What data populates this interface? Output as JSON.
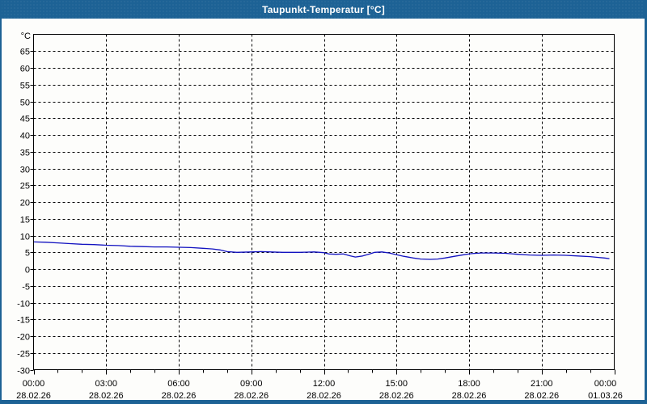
{
  "window": {
    "title": "Taupunkt-Temperatur [°C]",
    "colors": {
      "titlebar": "#1d6295",
      "frame": "#1d6295",
      "background": "#fdfdfb",
      "plot_border": "#000000",
      "grid": "#000000",
      "text": "#000000"
    }
  },
  "chart_data": {
    "type": "line",
    "title": "Taupunkt-Temperatur [°C]",
    "xlabel": "",
    "ylabel": "°C",
    "y_unit_label": "°C",
    "ylim": [
      -30,
      70
    ],
    "ytick_step": 5,
    "ytick_labels": [
      "65",
      "60",
      "55",
      "50",
      "45",
      "40",
      "35",
      "30",
      "25",
      "20",
      "15",
      "10",
      "5",
      "0",
      "-5",
      "-10",
      "-15",
      "-20",
      "-25",
      "-30"
    ],
    "grid": "dashed",
    "legend": "none",
    "x_minor_tick_hours": 1,
    "x_ticks": [
      {
        "hour": 0,
        "time": "00:00",
        "date": "28.02.26"
      },
      {
        "hour": 3,
        "time": "03:00",
        "date": "28.02.26"
      },
      {
        "hour": 6,
        "time": "06:00",
        "date": "28.02.26"
      },
      {
        "hour": 9,
        "time": "09:00",
        "date": "28.02.26"
      },
      {
        "hour": 12,
        "time": "12:00",
        "date": "28.02.26"
      },
      {
        "hour": 15,
        "time": "15:00",
        "date": "28.02.26"
      },
      {
        "hour": 18,
        "time": "18:00",
        "date": "28.02.26"
      },
      {
        "hour": 21,
        "time": "21:00",
        "date": "28.02.26"
      },
      {
        "hour": 24,
        "time": "00:00",
        "date": "01.03.26"
      }
    ],
    "series": [
      {
        "name": "Taupunkt-Temperatur",
        "color": "#1212c0",
        "points": [
          [
            0,
            8.1
          ],
          [
            0.5,
            8.0
          ],
          [
            1,
            7.8
          ],
          [
            1.5,
            7.6
          ],
          [
            2,
            7.4
          ],
          [
            2.5,
            7.3
          ],
          [
            3,
            7.1
          ],
          [
            3.5,
            7.0
          ],
          [
            4,
            6.8
          ],
          [
            4.5,
            6.7
          ],
          [
            5,
            6.6
          ],
          [
            5.5,
            6.6
          ],
          [
            6,
            6.5
          ],
          [
            6.5,
            6.4
          ],
          [
            7,
            6.2
          ],
          [
            7.4,
            6.0
          ],
          [
            7.7,
            5.7
          ],
          [
            8,
            5.2
          ],
          [
            8.4,
            5.0
          ],
          [
            9,
            5.1
          ],
          [
            9.4,
            5.2
          ],
          [
            9.8,
            5.1
          ],
          [
            10.3,
            5.0
          ],
          [
            11,
            5.0
          ],
          [
            11.6,
            5.1
          ],
          [
            12,
            4.9
          ],
          [
            12.2,
            4.5
          ],
          [
            12.5,
            4.4
          ],
          [
            12.8,
            4.5
          ],
          [
            13.1,
            3.9
          ],
          [
            13.3,
            3.6
          ],
          [
            13.6,
            3.9
          ],
          [
            13.9,
            4.5
          ],
          [
            14.1,
            5.0
          ],
          [
            14.4,
            5.1
          ],
          [
            14.7,
            4.8
          ],
          [
            15,
            4.3
          ],
          [
            15.3,
            3.8
          ],
          [
            15.7,
            3.3
          ],
          [
            16,
            3.0
          ],
          [
            16.4,
            2.9
          ],
          [
            16.7,
            3.0
          ],
          [
            17,
            3.3
          ],
          [
            17.4,
            3.8
          ],
          [
            17.8,
            4.3
          ],
          [
            18.1,
            4.6
          ],
          [
            18.5,
            4.8
          ],
          [
            19,
            4.8
          ],
          [
            19.5,
            4.7
          ],
          [
            20,
            4.4
          ],
          [
            20.5,
            4.2
          ],
          [
            21,
            4.1
          ],
          [
            21.5,
            4.2
          ],
          [
            22,
            4.1
          ],
          [
            22.5,
            3.9
          ],
          [
            23,
            3.7
          ],
          [
            23.3,
            3.5
          ],
          [
            23.6,
            3.3
          ],
          [
            23.8,
            3.1
          ]
        ]
      }
    ]
  }
}
